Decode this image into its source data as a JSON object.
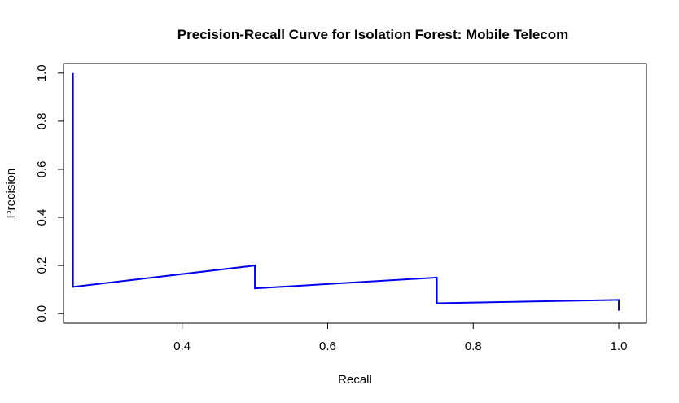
{
  "chart_data": {
    "type": "line",
    "title": "Precision-Recall Curve for Isolation Forest: Mobile Telecom",
    "xlabel": "Recall",
    "ylabel": "Precision",
    "xlim": [
      0.237,
      1.038
    ],
    "ylim": [
      -0.04,
      1.04
    ],
    "x_ticks": [
      0.4,
      0.6,
      0.8,
      1.0
    ],
    "x_tick_labels": [
      "0.4",
      "0.6",
      "0.8",
      "1.0"
    ],
    "y_ticks": [
      0.0,
      0.2,
      0.4,
      0.6,
      0.8,
      1.0
    ],
    "y_tick_labels": [
      "0.0",
      "0.2",
      "0.4",
      "0.6",
      "0.8",
      "1.0"
    ],
    "grid": false,
    "legend": "none",
    "series": [
      {
        "color": "#0000ee",
        "x": [
          0.25,
          0.25,
          0.5,
          0.5,
          0.75,
          0.75,
          1.0,
          1.0
        ],
        "y": [
          1.0,
          0.111,
          0.2,
          0.105,
          0.15,
          0.043,
          0.057,
          0.012
        ]
      }
    ]
  }
}
